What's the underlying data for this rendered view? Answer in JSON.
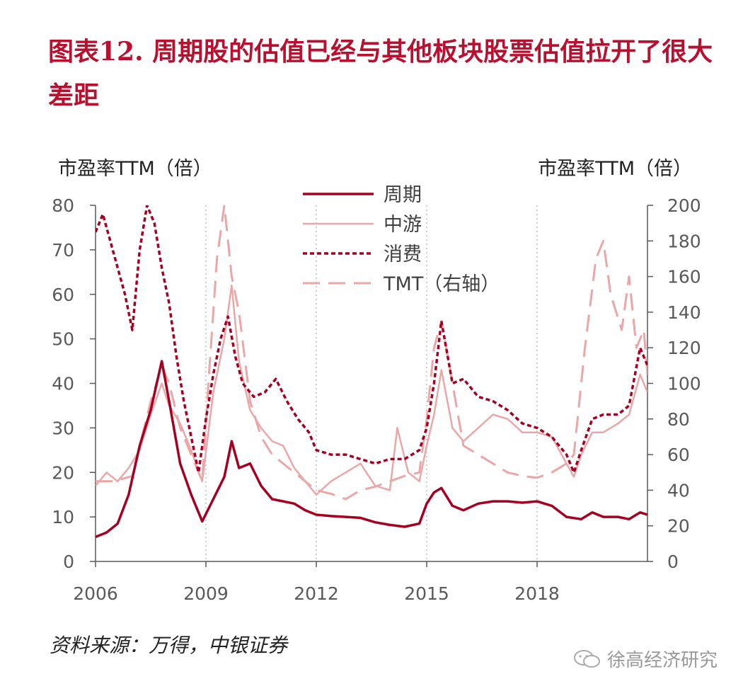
{
  "title": "图表12.  周期股的估值已经与其他板块股票估值拉开了很大差距",
  "source": "资料来源：万得，中银证券",
  "watermark": "徐高经济研究",
  "chart_data": {
    "type": "line",
    "ylabel_left": "市盈率TTM（倍）",
    "ylabel_right": "市盈率TTM（倍）",
    "xlim": [
      2006.0,
      2021.0
    ],
    "xticks": [
      "2006",
      "2009",
      "2012",
      "2015",
      "2018"
    ],
    "ylim_left": [
      0,
      80
    ],
    "yticks_left": [
      "0",
      "10",
      "20",
      "30",
      "40",
      "50",
      "60",
      "70",
      "80"
    ],
    "ylim_right": [
      0,
      200
    ],
    "yticks_right": [
      "0",
      "20",
      "40",
      "60",
      "80",
      "100",
      "120",
      "140",
      "160",
      "180",
      "200"
    ],
    "grid": "vertical dotted",
    "legend_position": "top-center",
    "series": [
      {
        "name": "周期",
        "axis": "left",
        "color": "#a50021",
        "style": "solid-thick",
        "x": [
          2006.0,
          2006.3,
          2006.6,
          2006.9,
          2007.2,
          2007.5,
          2007.8,
          2008.0,
          2008.3,
          2008.6,
          2008.9,
          2009.2,
          2009.5,
          2009.7,
          2009.9,
          2010.2,
          2010.5,
          2010.8,
          2011.1,
          2011.4,
          2011.7,
          2012.0,
          2012.4,
          2012.8,
          2013.2,
          2013.6,
          2014.0,
          2014.4,
          2014.8,
          2015.0,
          2015.2,
          2015.4,
          2015.7,
          2016.0,
          2016.4,
          2016.8,
          2017.2,
          2017.6,
          2018.0,
          2018.4,
          2018.8,
          2019.2,
          2019.5,
          2019.8,
          2020.2,
          2020.5,
          2020.8,
          2021.0
        ],
        "y": [
          5.5,
          6.5,
          8.5,
          15,
          26,
          34,
          45,
          36,
          22,
          15,
          9,
          14,
          19,
          27,
          21,
          22,
          17,
          14,
          13.5,
          13,
          11.5,
          10.5,
          10.2,
          10,
          9.8,
          8.8,
          8.2,
          7.8,
          8.5,
          13,
          15.5,
          16.5,
          12.5,
          11.5,
          13,
          13.5,
          13.5,
          13.2,
          13.5,
          12.5,
          10,
          9.5,
          11,
          10,
          10,
          9.5,
          11,
          10.5
        ]
      },
      {
        "name": "中游",
        "axis": "left",
        "color": "#eba7a7",
        "style": "solid",
        "x": [
          2006.0,
          2006.3,
          2006.6,
          2006.9,
          2007.2,
          2007.5,
          2007.8,
          2008.0,
          2008.3,
          2008.6,
          2008.9,
          2009.2,
          2009.5,
          2009.7,
          2009.9,
          2010.2,
          2010.5,
          2010.8,
          2011.1,
          2011.4,
          2011.7,
          2012.0,
          2012.4,
          2012.8,
          2013.2,
          2013.6,
          2014.0,
          2014.2,
          2014.5,
          2014.8,
          2015.0,
          2015.2,
          2015.4,
          2015.7,
          2016.0,
          2016.4,
          2016.8,
          2017.2,
          2017.6,
          2018.0,
          2018.4,
          2018.8,
          2019.0,
          2019.2,
          2019.5,
          2019.8,
          2020.2,
          2020.5,
          2020.8,
          2021.0
        ],
        "y": [
          17,
          20,
          18,
          21,
          25,
          33,
          40,
          35,
          31,
          25,
          18,
          38,
          50,
          62,
          45,
          34,
          30,
          27,
          26,
          21,
          18,
          15,
          18,
          20,
          22,
          17,
          16,
          30,
          20,
          18,
          26,
          33,
          43,
          30,
          27,
          30,
          33,
          32,
          29,
          29,
          28,
          22,
          19,
          24,
          29,
          29,
          31,
          33,
          42,
          38
        ]
      },
      {
        "name": "消费",
        "axis": "left",
        "color": "#a50021",
        "style": "dotted",
        "x": [
          2006.0,
          2006.2,
          2006.4,
          2006.6,
          2006.8,
          2007.0,
          2007.2,
          2007.4,
          2007.6,
          2007.8,
          2008.0,
          2008.2,
          2008.4,
          2008.6,
          2008.8,
          2009.0,
          2009.2,
          2009.4,
          2009.6,
          2009.8,
          2010.0,
          2010.3,
          2010.6,
          2010.9,
          2011.2,
          2011.5,
          2011.8,
          2012.0,
          2012.4,
          2012.8,
          2013.2,
          2013.6,
          2014.0,
          2014.4,
          2014.8,
          2015.0,
          2015.2,
          2015.4,
          2015.7,
          2016.0,
          2016.4,
          2016.8,
          2017.2,
          2017.6,
          2018.0,
          2018.4,
          2018.8,
          2019.0,
          2019.2,
          2019.5,
          2019.8,
          2020.2,
          2020.5,
          2020.8,
          2021.0
        ],
        "y": [
          74,
          78,
          72,
          66,
          60,
          52,
          70,
          80,
          76,
          66,
          58,
          46,
          36,
          28,
          20,
          32,
          42,
          50,
          55,
          46,
          40,
          37,
          38,
          41,
          36,
          32,
          29,
          25,
          24,
          24,
          23,
          22,
          23,
          23,
          25,
          30,
          40,
          54,
          40,
          41,
          37,
          36,
          34,
          31,
          30,
          28,
          24,
          20,
          25,
          32,
          33,
          33,
          35,
          48,
          44
        ]
      },
      {
        "name": "TMT（右轴）",
        "axis": "right",
        "color": "#eba7a7",
        "style": "dashed",
        "x": [
          2006.0,
          2006.5,
          2007.0,
          2007.5,
          2007.8,
          2008.0,
          2008.3,
          2008.6,
          2008.9,
          2009.1,
          2009.3,
          2009.5,
          2009.7,
          2009.9,
          2010.2,
          2010.5,
          2010.8,
          2011.1,
          2011.4,
          2011.7,
          2012.0,
          2012.4,
          2012.8,
          2013.2,
          2013.6,
          2014.0,
          2014.4,
          2014.8,
          2015.0,
          2015.2,
          2015.4,
          2015.7,
          2016.0,
          2016.4,
          2016.8,
          2017.2,
          2017.6,
          2018.0,
          2018.4,
          2018.8,
          2019.0,
          2019.3,
          2019.6,
          2019.8,
          2020.0,
          2020.3,
          2020.5,
          2020.7,
          2020.9,
          2021.0
        ],
        "y": [
          45,
          45,
          48,
          90,
          110,
          100,
          75,
          60,
          45,
          110,
          170,
          200,
          160,
          140,
          90,
          70,
          60,
          55,
          50,
          45,
          40,
          38,
          35,
          40,
          42,
          45,
          48,
          50,
          80,
          120,
          135,
          100,
          65,
          60,
          55,
          50,
          48,
          47,
          50,
          55,
          60,
          120,
          170,
          180,
          150,
          130,
          160,
          120,
          130,
          105
        ]
      }
    ]
  }
}
